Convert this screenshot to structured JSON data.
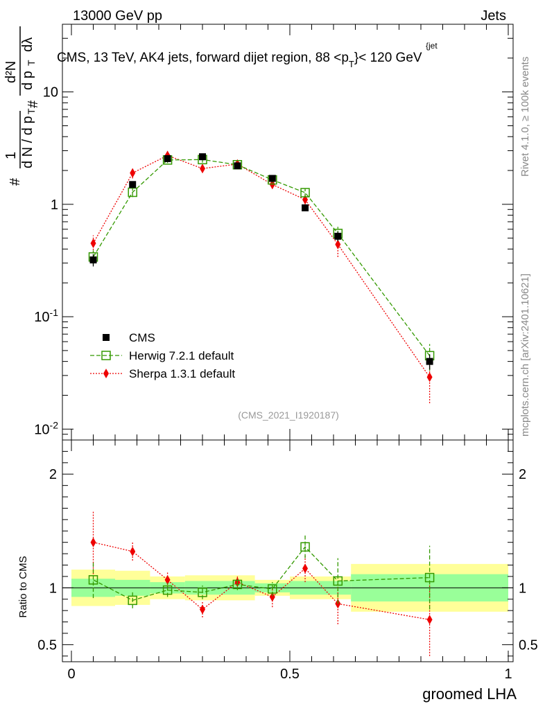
{
  "header": {
    "left": "13000 GeV pp",
    "right": "Jets",
    "title_prefix": "CMS, 13 TeV, AK4 jets, forward dijet region, 88 <p",
    "title_sup": "{jet",
    "title_sub": "T",
    "title_suffix": "}< 120 GeV"
  },
  "side_labels": {
    "rivet": "Rivet 4.1.0, ≥ 100k events",
    "mcplots": "mcplots.cern.ch [arXiv:2401.10621]"
  },
  "watermark": "(CMS_2021_I1920187)",
  "y_label_main": "1/dN/dpT # d2N/dpT dλ",
  "y_label_ratio": "Ratio to CMS",
  "x_label": "groomed LHA",
  "colors": {
    "cms": "#000000",
    "herwig": "#339900",
    "sherpa": "#ee0000",
    "band_inner": "#99ff99",
    "band_outer": "#ffff99"
  },
  "chart_data": [
    {
      "type": "scatter",
      "panel": "main",
      "yscale": "log",
      "xlim": [
        0,
        1
      ],
      "ylim": [
        0.008,
        40
      ],
      "xlabel": "groomed LHA",
      "y_tick_labels": [
        "10^-2",
        "10^-1",
        "1",
        "10"
      ],
      "legend": [
        "CMS",
        "Herwig 7.2.1 default",
        "Sherpa 1.3.1 default"
      ],
      "legend_position": "lower-left",
      "x": [
        0.05,
        0.14,
        0.22,
        0.3,
        0.38,
        0.46,
        0.535,
        0.61,
        0.82
      ],
      "series": [
        {
          "name": "CMS",
          "values": [
            0.32,
            1.5,
            2.55,
            2.65,
            2.2,
            1.7,
            0.93,
            0.52,
            0.04
          ],
          "errors": [
            0.04,
            0.1,
            0.12,
            0.12,
            0.1,
            0.08,
            0.05,
            0.05,
            0.006
          ]
        },
        {
          "name": "Herwig 7.2.1 default",
          "values": [
            0.34,
            1.28,
            2.48,
            2.5,
            2.25,
            1.65,
            1.27,
            0.55,
            0.045
          ],
          "errors": [
            0.05,
            0.12,
            0.15,
            0.15,
            0.12,
            0.1,
            0.12,
            0.08,
            0.012
          ]
        },
        {
          "name": "Sherpa 1.3.1 default",
          "values": [
            0.45,
            1.9,
            2.72,
            2.08,
            2.28,
            1.5,
            1.1,
            0.44,
            0.029
          ],
          "errors": [
            0.08,
            0.2,
            0.2,
            0.15,
            0.15,
            0.12,
            0.12,
            0.1,
            0.012
          ]
        }
      ]
    },
    {
      "type": "scatter",
      "panel": "ratio",
      "xlim": [
        0,
        1
      ],
      "ylim": [
        0.35,
        2.3
      ],
      "ylabel": "Ratio to CMS",
      "x_tick_labels": [
        "0",
        "0.5",
        "1"
      ],
      "y_tick_labels": [
        "0.5",
        "1",
        "2"
      ],
      "bins": [
        {
          "lo": 0.0,
          "hi": 0.1,
          "inner": [
            0.92,
            1.08
          ],
          "outer": [
            0.84,
            1.16
          ]
        },
        {
          "lo": 0.1,
          "hi": 0.18,
          "inner": [
            0.93,
            1.07
          ],
          "outer": [
            0.85,
            1.15
          ]
        },
        {
          "lo": 0.18,
          "hi": 0.26,
          "inner": [
            0.95,
            1.05
          ],
          "outer": [
            0.9,
            1.1
          ]
        },
        {
          "lo": 0.26,
          "hi": 0.42,
          "inner": [
            0.94,
            1.06
          ],
          "outer": [
            0.89,
            1.11
          ]
        },
        {
          "lo": 0.42,
          "hi": 0.5,
          "inner": [
            0.96,
            1.04
          ],
          "outer": [
            0.93,
            1.07
          ]
        },
        {
          "lo": 0.5,
          "hi": 0.64,
          "inner": [
            0.94,
            1.06
          ],
          "outer": [
            0.9,
            1.1
          ]
        },
        {
          "lo": 0.64,
          "hi": 1.0,
          "inner": [
            0.88,
            1.12
          ],
          "outer": [
            0.79,
            1.21
          ]
        }
      ],
      "x": [
        0.05,
        0.14,
        0.22,
        0.3,
        0.38,
        0.46,
        0.535,
        0.61,
        0.82
      ],
      "series": [
        {
          "name": "Herwig 7.2.1 default",
          "values": [
            1.07,
            0.89,
            0.98,
            0.96,
            1.03,
            0.99,
            1.36,
            1.06,
            1.09
          ],
          "errors": [
            0.16,
            0.07,
            0.06,
            0.06,
            0.05,
            0.06,
            0.1,
            0.2,
            0.28
          ]
        },
        {
          "name": "Sherpa 1.3.1 default",
          "values": [
            1.4,
            1.32,
            1.07,
            0.81,
            1.05,
            0.92,
            1.17,
            0.86,
            0.72
          ],
          "errors": [
            0.28,
            0.08,
            0.07,
            0.07,
            0.06,
            0.09,
            0.12,
            0.18,
            0.32
          ]
        }
      ]
    }
  ]
}
